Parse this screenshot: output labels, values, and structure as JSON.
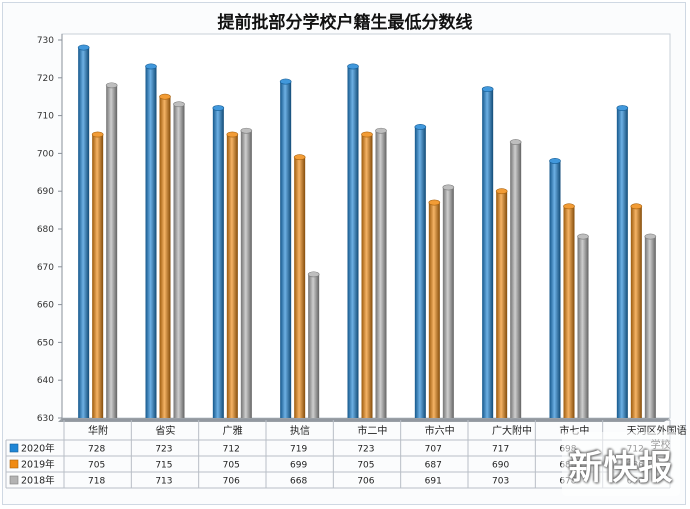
{
  "chart_data": {
    "type": "bar",
    "title": "提前批部分学校户籍生最低分数线",
    "categories": [
      "华附",
      "省实",
      "广雅",
      "执信",
      "市二中",
      "市六中",
      "广大附中",
      "市七中",
      "天河区外国语学校"
    ],
    "series": [
      {
        "name": "2020年",
        "color": "#1f86d6",
        "values": [
          728,
          723,
          712,
          719,
          723,
          707,
          717,
          698,
          712
        ]
      },
      {
        "name": "2019年",
        "color": "#f08a12",
        "values": [
          705,
          715,
          705,
          699,
          705,
          687,
          690,
          686,
          686
        ]
      },
      {
        "name": "2018年",
        "color": "#b3b3b3",
        "values": [
          718,
          713,
          706,
          668,
          706,
          691,
          703,
          678,
          678
        ]
      }
    ],
    "ylim": [
      630,
      730
    ],
    "yticks": [
      630,
      640,
      650,
      660,
      670,
      680,
      690,
      700,
      710,
      720,
      730
    ],
    "grid": false,
    "legend": "data-table-below"
  },
  "watermark": "新快报"
}
